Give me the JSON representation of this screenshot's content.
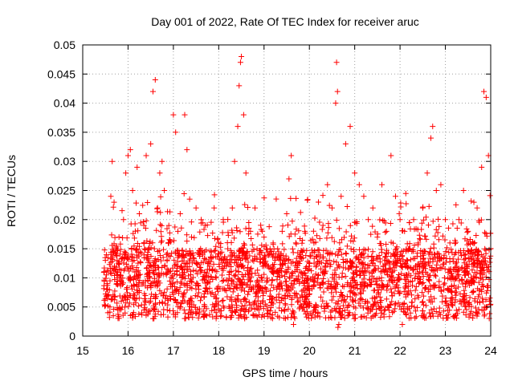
{
  "chart_data": {
    "type": "scatter",
    "title": "Day 001 of 2022, Rate Of TEC Index for receiver aruc",
    "xlabel": "GPS time / hours",
    "ylabel": "ROTI / TECUs",
    "xlim": [
      15,
      24
    ],
    "ylim": [
      0,
      0.05
    ],
    "x_ticks": [
      "15",
      "16",
      "17",
      "18",
      "19",
      "20",
      "21",
      "22",
      "23",
      "24"
    ],
    "y_ticks": [
      "0",
      "0.005",
      "0.01",
      "0.015",
      "0.02",
      "0.025",
      "0.03",
      "0.035",
      "0.04",
      "0.045",
      "0.05"
    ],
    "grid": true,
    "marker": "+",
    "color": "#ff0000",
    "data_x_range": [
      15.45,
      24.0
    ],
    "series": [
      {
        "points": [
          [
            15.5,
            0.013
          ],
          [
            15.55,
            0.008
          ],
          [
            15.6,
            0.005
          ],
          [
            15.62,
            0.024
          ],
          [
            15.65,
            0.03
          ],
          [
            15.7,
            0.012
          ],
          [
            15.75,
            0.009
          ],
          [
            15.8,
            0.017
          ],
          [
            15.85,
            0.006
          ],
          [
            15.9,
            0.02
          ],
          [
            15.95,
            0.028
          ],
          [
            16.0,
            0.031
          ],
          [
            16.05,
            0.032
          ],
          [
            16.1,
            0.025
          ],
          [
            16.15,
            0.011
          ],
          [
            16.2,
            0.029
          ],
          [
            16.25,
            0.021
          ],
          [
            16.3,
            0.004
          ],
          [
            16.35,
            0.019
          ],
          [
            16.4,
            0.031
          ],
          [
            16.5,
            0.033
          ],
          [
            16.55,
            0.042
          ],
          [
            16.6,
            0.044
          ],
          [
            16.65,
            0.022
          ],
          [
            16.7,
            0.028
          ],
          [
            16.75,
            0.03
          ],
          [
            16.8,
            0.025
          ],
          [
            16.85,
            0.014
          ],
          [
            16.9,
            0.016
          ],
          [
            17.0,
            0.038
          ],
          [
            17.05,
            0.035
          ],
          [
            17.1,
            0.018
          ],
          [
            17.15,
            0.021
          ],
          [
            17.25,
            0.038
          ],
          [
            17.3,
            0.032
          ],
          [
            17.4,
            0.017
          ],
          [
            17.5,
            0.022
          ],
          [
            17.6,
            0.015
          ],
          [
            17.7,
            0.019
          ],
          [
            17.8,
            0.012
          ],
          [
            17.9,
            0.022
          ],
          [
            18.0,
            0.016
          ],
          [
            18.1,
            0.02
          ],
          [
            18.2,
            0.015
          ],
          [
            18.3,
            0.022
          ],
          [
            18.35,
            0.03
          ],
          [
            18.42,
            0.036
          ],
          [
            18.45,
            0.043
          ],
          [
            18.48,
            0.047
          ],
          [
            18.5,
            0.048
          ],
          [
            18.55,
            0.038
          ],
          [
            18.6,
            0.028
          ],
          [
            18.7,
            0.018
          ],
          [
            18.8,
            0.022
          ],
          [
            18.9,
            0.014
          ],
          [
            19.0,
            0.017
          ],
          [
            19.1,
            0.012
          ],
          [
            19.2,
            0.016
          ],
          [
            19.3,
            0.015
          ],
          [
            19.4,
            0.018
          ],
          [
            19.5,
            0.021
          ],
          [
            19.55,
            0.027
          ],
          [
            19.6,
            0.031
          ],
          [
            19.7,
            0.016
          ],
          [
            19.8,
            0.014
          ],
          [
            19.9,
            0.018
          ],
          [
            20.0,
            0.012
          ],
          [
            20.1,
            0.016
          ],
          [
            20.2,
            0.023
          ],
          [
            20.3,
            0.019
          ],
          [
            20.4,
            0.026
          ],
          [
            20.5,
            0.022
          ],
          [
            20.58,
            0.04
          ],
          [
            20.6,
            0.047
          ],
          [
            20.62,
            0.042
          ],
          [
            20.7,
            0.024
          ],
          [
            20.8,
            0.033
          ],
          [
            20.9,
            0.036
          ],
          [
            21.0,
            0.028
          ],
          [
            21.1,
            0.026
          ],
          [
            21.2,
            0.024
          ],
          [
            21.3,
            0.02
          ],
          [
            21.4,
            0.022
          ],
          [
            21.5,
            0.017
          ],
          [
            21.6,
            0.026
          ],
          [
            21.7,
            0.018
          ],
          [
            21.8,
            0.031
          ],
          [
            21.9,
            0.024
          ],
          [
            22.0,
            0.02
          ],
          [
            22.1,
            0.018
          ],
          [
            22.2,
            0.015
          ],
          [
            22.3,
            0.02
          ],
          [
            22.4,
            0.016
          ],
          [
            22.5,
            0.022
          ],
          [
            22.6,
            0.028
          ],
          [
            22.68,
            0.034
          ],
          [
            22.72,
            0.036
          ],
          [
            22.8,
            0.025
          ],
          [
            22.9,
            0.026
          ],
          [
            23.0,
            0.02
          ],
          [
            23.1,
            0.016
          ],
          [
            23.2,
            0.014
          ],
          [
            23.3,
            0.02
          ],
          [
            23.4,
            0.025
          ],
          [
            23.5,
            0.018
          ],
          [
            23.6,
            0.016
          ],
          [
            23.7,
            0.022
          ],
          [
            23.8,
            0.029
          ],
          [
            23.85,
            0.042
          ],
          [
            23.9,
            0.041
          ],
          [
            23.95,
            0.031
          ],
          [
            24.0,
            0.015
          ],
          [
            20.65,
            0.002
          ],
          [
            20.63,
            0.0015
          ],
          [
            22.05,
            0.002
          ],
          [
            16.55,
            0.003
          ],
          [
            19.65,
            0.002
          ]
        ]
      }
    ]
  }
}
